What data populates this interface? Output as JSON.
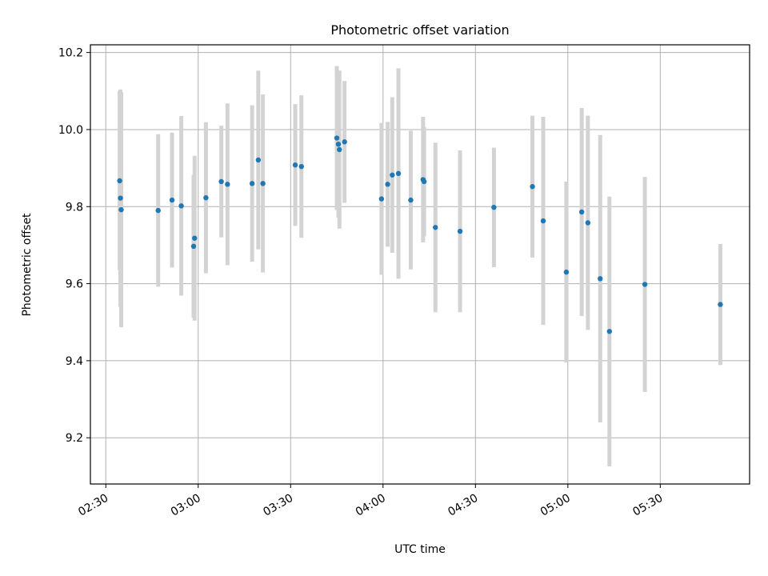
{
  "chart_data": {
    "type": "scatter",
    "title": "Photometric offset variation",
    "xlabel": "UTC time",
    "ylabel": "Photometric offset",
    "xlim": [
      "02:25",
      "05:59"
    ],
    "ylim": [
      9.08,
      10.22
    ],
    "grid": true,
    "x_ticks": [
      "02:30",
      "03:00",
      "03:30",
      "04:00",
      "04:30",
      "05:00",
      "05:30"
    ],
    "y_ticks": [
      "9.2",
      "9.4",
      "9.6",
      "9.8",
      "10.0",
      "10.2"
    ],
    "colors": {
      "marker": "#1f77b4",
      "errorbar": "#d3d3d3",
      "grid": "#b0b0b0"
    },
    "points": [
      {
        "x": "02:34:30",
        "y": 9.867,
        "yerr_low": 0.232,
        "yerr_high": 0.233
      },
      {
        "x": "02:34:45",
        "y": 9.822,
        "yerr_low": 0.282,
        "yerr_high": 0.282
      },
      {
        "x": "02:35:00",
        "y": 9.792,
        "yerr_low": 0.305,
        "yerr_high": 0.305
      },
      {
        "x": "02:47:00",
        "y": 9.79,
        "yerr_low": 0.198,
        "yerr_high": 0.198
      },
      {
        "x": "02:51:30",
        "y": 9.817,
        "yerr_low": 0.175,
        "yerr_high": 0.175
      },
      {
        "x": "02:54:30",
        "y": 9.802,
        "yerr_low": 0.233,
        "yerr_high": 0.233
      },
      {
        "x": "02:58:30",
        "y": 9.697,
        "yerr_low": 0.185,
        "yerr_high": 0.185
      },
      {
        "x": "02:58:50",
        "y": 9.718,
        "yerr_low": 0.214,
        "yerr_high": 0.214
      },
      {
        "x": "03:02:30",
        "y": 9.823,
        "yerr_low": 0.196,
        "yerr_high": 0.196
      },
      {
        "x": "03:07:30",
        "y": 9.865,
        "yerr_low": 0.145,
        "yerr_high": 0.145
      },
      {
        "x": "03:09:30",
        "y": 9.858,
        "yerr_low": 0.21,
        "yerr_high": 0.21
      },
      {
        "x": "03:17:30",
        "y": 9.86,
        "yerr_low": 0.203,
        "yerr_high": 0.203
      },
      {
        "x": "03:19:30",
        "y": 9.921,
        "yerr_low": 0.232,
        "yerr_high": 0.232
      },
      {
        "x": "03:21:00",
        "y": 9.86,
        "yerr_low": 0.231,
        "yerr_high": 0.231
      },
      {
        "x": "03:31:30",
        "y": 9.908,
        "yerr_low": 0.158,
        "yerr_high": 0.158
      },
      {
        "x": "03:33:30",
        "y": 9.904,
        "yerr_low": 0.185,
        "yerr_high": 0.185
      },
      {
        "x": "03:45:00",
        "y": 9.978,
        "yerr_low": 0.187,
        "yerr_high": 0.187
      },
      {
        "x": "03:45:30",
        "y": 9.962,
        "yerr_low": 0.19,
        "yerr_high": 0.19
      },
      {
        "x": "03:45:50",
        "y": 9.948,
        "yerr_low": 0.205,
        "yerr_high": 0.205
      },
      {
        "x": "03:47:30",
        "y": 9.968,
        "yerr_low": 0.158,
        "yerr_high": 0.158
      },
      {
        "x": "03:59:30",
        "y": 9.82,
        "yerr_low": 0.197,
        "yerr_high": 0.197
      },
      {
        "x": "04:01:30",
        "y": 9.858,
        "yerr_low": 0.162,
        "yerr_high": 0.162
      },
      {
        "x": "04:03:00",
        "y": 9.882,
        "yerr_low": 0.202,
        "yerr_high": 0.202
      },
      {
        "x": "04:05:00",
        "y": 9.886,
        "yerr_low": 0.273,
        "yerr_high": 0.273
      },
      {
        "x": "04:09:00",
        "y": 9.817,
        "yerr_low": 0.18,
        "yerr_high": 0.18
      },
      {
        "x": "04:13:00",
        "y": 9.87,
        "yerr_low": 0.163,
        "yerr_high": 0.163
      },
      {
        "x": "04:13:20",
        "y": 9.865,
        "yerr_low": 0.142,
        "yerr_high": 0.142
      },
      {
        "x": "04:17:00",
        "y": 9.746,
        "yerr_low": 0.22,
        "yerr_high": 0.22
      },
      {
        "x": "04:25:00",
        "y": 9.736,
        "yerr_low": 0.21,
        "yerr_high": 0.21
      },
      {
        "x": "04:36:00",
        "y": 9.798,
        "yerr_low": 0.155,
        "yerr_high": 0.155
      },
      {
        "x": "04:48:30",
        "y": 9.852,
        "yerr_low": 0.184,
        "yerr_high": 0.184
      },
      {
        "x": "04:52:00",
        "y": 9.763,
        "yerr_low": 0.27,
        "yerr_high": 0.27
      },
      {
        "x": "04:59:30",
        "y": 9.63,
        "yerr_low": 0.235,
        "yerr_high": 0.235
      },
      {
        "x": "05:04:30",
        "y": 9.786,
        "yerr_low": 0.27,
        "yerr_high": 0.27
      },
      {
        "x": "05:06:30",
        "y": 9.758,
        "yerr_low": 0.278,
        "yerr_high": 0.278
      },
      {
        "x": "05:10:30",
        "y": 9.613,
        "yerr_low": 0.373,
        "yerr_high": 0.373
      },
      {
        "x": "05:13:30",
        "y": 9.476,
        "yerr_low": 0.35,
        "yerr_high": 0.35
      },
      {
        "x": "05:25:00",
        "y": 9.598,
        "yerr_low": 0.279,
        "yerr_high": 0.279
      },
      {
        "x": "05:49:30",
        "y": 9.546,
        "yerr_low": 0.157,
        "yerr_high": 0.157
      }
    ]
  }
}
